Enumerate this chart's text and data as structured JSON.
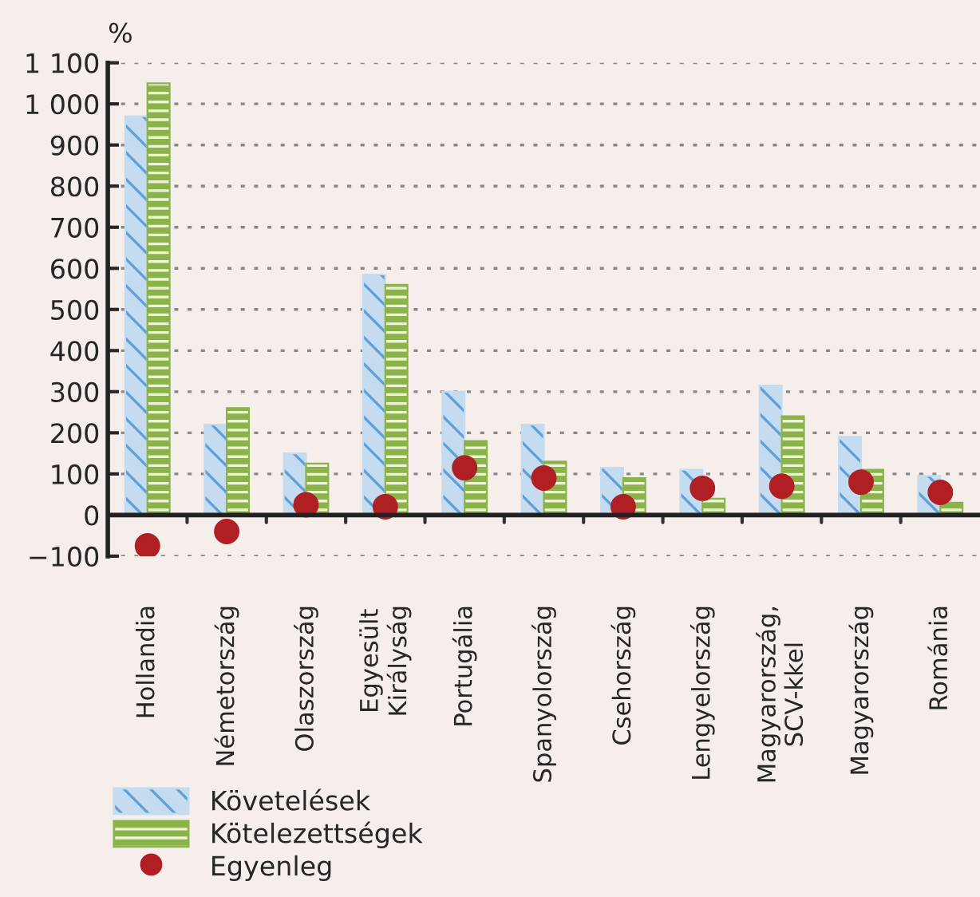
{
  "chart_data": {
    "type": "bar",
    "ylabel": "%",
    "categories": [
      "Hollandia",
      "Németország",
      "Olaszország",
      "Egyesült\nKirályság",
      "Portugália",
      "Spanyolország",
      "Csehország",
      "Lengyelország",
      "Magyarország,\nSCV-kkel",
      "Magyarország",
      "Románia"
    ],
    "series": [
      {
        "name": "Követelések",
        "color": "#c5dcf0",
        "values": [
          970,
          220,
          150,
          585,
          300,
          220,
          115,
          110,
          315,
          190,
          95
        ]
      },
      {
        "name": "Kötelezettségek",
        "color": "#8ab44a",
        "values": [
          1050,
          260,
          125,
          560,
          180,
          130,
          90,
          40,
          240,
          110,
          30
        ]
      },
      {
        "name": "Egyenleg",
        "type": "scatter",
        "color": "#b01f24",
        "values": [
          -75,
          -40,
          25,
          20,
          115,
          90,
          20,
          65,
          70,
          80,
          55
        ]
      }
    ],
    "ylim": [
      -100,
      1100
    ],
    "yticks": [
      {
        "value": -100,
        "label": "−100"
      },
      0,
      100,
      200,
      300,
      400,
      500,
      600,
      700,
      800,
      900,
      {
        "value": 1000,
        "label": "1 000"
      },
      {
        "value": 1100,
        "label": "1 100"
      }
    ],
    "grid": "y",
    "legend": "bottom left",
    "marker": "circle"
  }
}
